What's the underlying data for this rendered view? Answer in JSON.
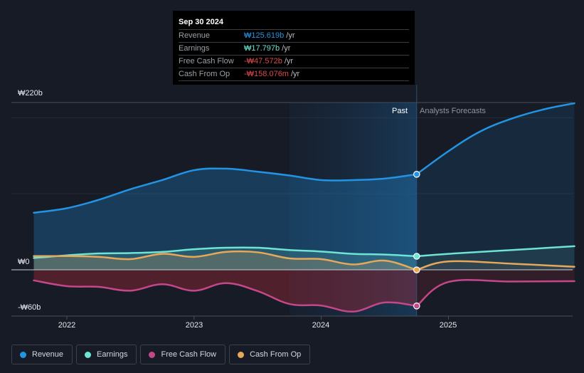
{
  "tooltip": {
    "date": "Sep 30 2024",
    "rows": [
      {
        "label": "Revenue",
        "value": "₩125.619b",
        "unit": "/yr",
        "color": "#2394e3"
      },
      {
        "label": "Earnings",
        "value": "₩17.797b",
        "unit": "/yr",
        "color": "#6de4d4"
      },
      {
        "label": "Free Cash Flow",
        "value": "-₩47.572b",
        "unit": "/yr",
        "color": "#e0474c"
      },
      {
        "label": "Cash From Op",
        "value": "-₩158.076m",
        "unit": "/yr",
        "color": "#e0474c"
      }
    ]
  },
  "periods": {
    "past": "Past",
    "forecast": "Analysts Forecasts"
  },
  "legend": [
    {
      "label": "Revenue",
      "color": "#2394e3"
    },
    {
      "label": "Earnings",
      "color": "#6de4d4"
    },
    {
      "label": "Free Cash Flow",
      "color": "#c4478a"
    },
    {
      "label": "Cash From Op",
      "color": "#e7a85a"
    }
  ],
  "chart_data": {
    "type": "area",
    "title": "",
    "xlabel": "",
    "ylabel": "",
    "currency": "₩",
    "unit": "b",
    "ylim": [
      -60,
      220
    ],
    "yticks": [
      {
        "value": 220,
        "label": "₩220b"
      },
      {
        "value": 0,
        "label": "₩0"
      },
      {
        "value": -60,
        "label": "-₩60b"
      }
    ],
    "gridlines": [
      200,
      100
    ],
    "xlim": [
      2021.74,
      2025.99
    ],
    "xticks": [
      {
        "value": 2022,
        "label": "2022"
      },
      {
        "value": 2023,
        "label": "2023"
      },
      {
        "value": 2024,
        "label": "2024"
      },
      {
        "value": 2025,
        "label": "2025"
      }
    ],
    "past_end": 2024.75,
    "highlight_start": 2023.75,
    "legend_position": "bottom-left",
    "series": [
      {
        "name": "Revenue",
        "color": "#2394e3",
        "past": {
          "x": [
            2021.74,
            2022.0,
            2022.25,
            2022.5,
            2022.75,
            2023.0,
            2023.25,
            2023.5,
            2023.75,
            2024.0,
            2024.25,
            2024.5,
            2024.75
          ],
          "y": [
            75,
            81,
            92,
            106,
            118,
            131,
            133,
            129,
            124,
            118,
            118,
            120,
            125.619
          ]
        },
        "forecast": {
          "x": [
            2024.75,
            2025.0,
            2025.25,
            2025.5,
            2025.75,
            2025.99
          ],
          "y": [
            125.619,
            156,
            182,
            199,
            211,
            219
          ]
        }
      },
      {
        "name": "Earnings",
        "color": "#6de4d4",
        "past": {
          "x": [
            2021.74,
            2022.0,
            2022.25,
            2022.5,
            2022.75,
            2023.0,
            2023.25,
            2023.5,
            2023.75,
            2024.0,
            2024.25,
            2024.5,
            2024.75
          ],
          "y": [
            15.5,
            19,
            21.5,
            22,
            23.5,
            27,
            29,
            29,
            26,
            24,
            21,
            20,
            17.797
          ]
        },
        "forecast": {
          "x": [
            2024.75,
            2025.0,
            2025.5,
            2025.99
          ],
          "y": [
            17.797,
            21,
            26,
            31
          ]
        }
      },
      {
        "name": "Free Cash Flow",
        "color": "#c4478a",
        "past": {
          "x": [
            2021.74,
            2022.0,
            2022.25,
            2022.5,
            2022.75,
            2023.0,
            2023.25,
            2023.5,
            2023.75,
            2024.0,
            2024.25,
            2024.5,
            2024.75
          ],
          "y": [
            -14,
            -21.5,
            -22.5,
            -27.5,
            -19,
            -27.5,
            -17.5,
            -28,
            -45,
            -47,
            -55,
            -43,
            -47.572
          ]
        },
        "forecast": {
          "x": [
            2024.75,
            2025.0,
            2025.5,
            2025.99
          ],
          "y": [
            -47.572,
            -16,
            -15.5,
            -15
          ]
        }
      },
      {
        "name": "Cash From Op",
        "color": "#e7a85a",
        "past": {
          "x": [
            2021.74,
            2022.0,
            2022.25,
            2022.5,
            2022.75,
            2023.0,
            2023.25,
            2023.5,
            2023.75,
            2024.0,
            2024.25,
            2024.5,
            2024.75
          ],
          "y": [
            18,
            18,
            17,
            14,
            21,
            17,
            23.5,
            23,
            15,
            14,
            7,
            12,
            -0.158
          ]
        },
        "forecast": {
          "x": [
            2024.75,
            2025.0,
            2025.5,
            2025.99
          ],
          "y": [
            -0.158,
            11,
            8,
            4
          ]
        }
      }
    ]
  }
}
